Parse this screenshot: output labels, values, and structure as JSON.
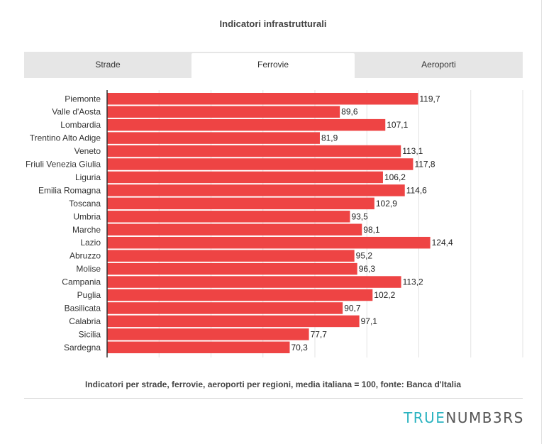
{
  "title": "Indicatori infrastrutturali",
  "tabs": [
    {
      "label": "Strade",
      "active": false
    },
    {
      "label": "Ferrovie",
      "active": true
    },
    {
      "label": "Aeroporti",
      "active": false
    }
  ],
  "footnote": "Indicatori per strade, ferrovie, aeroporti per regioni, media italiana = 100, fonte: Banca d'Italia",
  "logo": {
    "part1": "TRUE",
    "part2": "NUMB3RS"
  },
  "colors": {
    "bar": "#ee4444",
    "grid": "#e3e3e3",
    "axis": "#333333",
    "logo_accent": "#2bb3c0"
  },
  "chart_data": {
    "type": "bar",
    "orientation": "horizontal",
    "categories": [
      "Piemonte",
      "Valle d'Aosta",
      "Lombardia",
      "Trentino Alto Adige",
      "Veneto",
      "Friuli Venezia Giulia",
      "Liguria",
      "Emilia Romagna",
      "Toscana",
      "Umbria",
      "Marche",
      "Lazio",
      "Abruzzo",
      "Molise",
      "Campania",
      "Puglia",
      "Basilicata",
      "Calabria",
      "Sicilia",
      "Sardegna"
    ],
    "values": [
      119.7,
      89.6,
      107.1,
      81.9,
      113.1,
      117.8,
      106.2,
      114.6,
      102.9,
      93.5,
      98.1,
      124.4,
      95.2,
      96.3,
      113.2,
      102.2,
      90.7,
      97.1,
      77.7,
      70.3
    ],
    "value_labels": [
      "119,7",
      "89,6",
      "107,1",
      "81,9",
      "113,1",
      "117,8",
      "106,2",
      "114,6",
      "102,9",
      "93,5",
      "98,1",
      "124,4",
      "95,2",
      "96,3",
      "113,2",
      "102,2",
      "90,7",
      "97,1",
      "77,7",
      "70,3"
    ],
    "xlim": [
      0,
      160
    ],
    "grid": true,
    "title": "Indicatori infrastrutturali"
  }
}
